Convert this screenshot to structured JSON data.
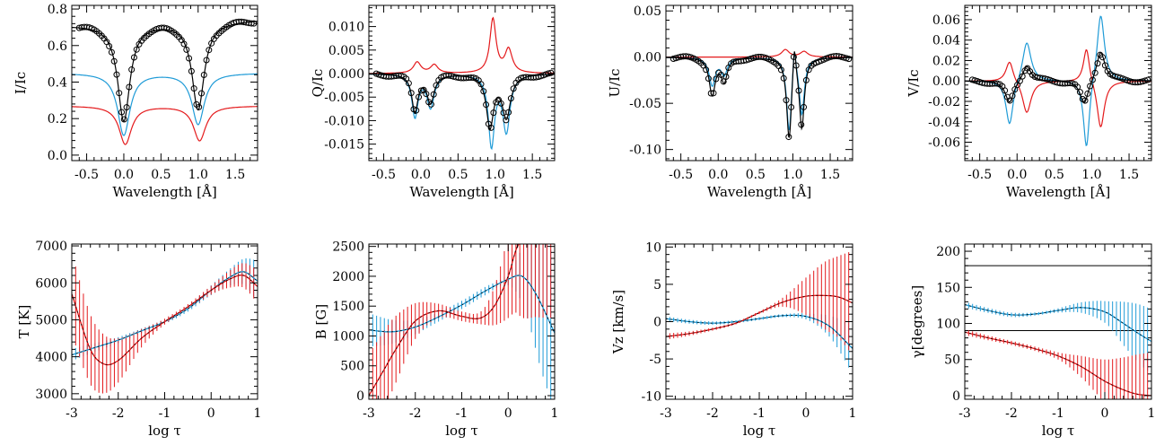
{
  "colors": {
    "black": "#000000",
    "blue": "#1f9bd7",
    "red": "#e41a1c"
  },
  "chart_data": [
    {
      "type": "line",
      "xlabel": "Wavelength [Å]",
      "ylabel": "I/Ic",
      "xlim": [
        -0.7,
        1.8
      ],
      "ylim": [
        -0.03,
        0.82
      ],
      "xticks": [
        -0.5,
        0.0,
        0.5,
        1.0,
        1.5
      ],
      "xticklabels": [
        "-0.5",
        "0.0",
        "0.5",
        "1.0",
        "1.5"
      ],
      "yticks": [
        0.0,
        0.2,
        0.4,
        0.6,
        0.8
      ],
      "yticklabels": [
        "0.0",
        "0.2",
        "0.4",
        "0.6",
        "0.8"
      ],
      "profiles": [
        {
          "color": "black",
          "cont": 0.72,
          "slope": 0.012,
          "lines": [
            [
              0.0,
              -0.53,
              0.1
            ],
            [
              1.0,
              -0.48,
              0.1
            ]
          ]
        },
        {
          "color": "blue",
          "cont": 0.45,
          "lines": [
            [
              0.0,
              -0.34,
              0.1
            ],
            [
              1.0,
              -0.28,
              0.1
            ]
          ]
        },
        {
          "color": "red",
          "cont": 0.27,
          "lines": [
            [
              0.02,
              -0.21,
              0.1
            ],
            [
              1.02,
              -0.19,
              0.1
            ]
          ]
        }
      ],
      "observed": "black"
    },
    {
      "type": "line",
      "xlabel": "Wavelength [Å]",
      "ylabel": "Q/Ic",
      "xlim": [
        -0.7,
        1.8
      ],
      "ylim": [
        -0.0185,
        0.0145
      ],
      "xticks": [
        -0.5,
        0.0,
        0.5,
        1.0,
        1.5
      ],
      "xticklabels": [
        "-0.5",
        "0.0",
        "0.5",
        "1.0",
        "1.5"
      ],
      "yticks": [
        -0.015,
        -0.01,
        -0.005,
        0.0,
        0.005,
        0.01
      ],
      "yticklabels": [
        "-0.015",
        "-0.010",
        "-0.005",
        "0.000",
        "0.005",
        "0.010"
      ],
      "profiles": [
        {
          "color": "black",
          "cont": 0.0,
          "lines": [
            [
              -0.08,
              -0.008,
              0.05
            ],
            [
              0.13,
              -0.006,
              0.06
            ],
            [
              0.93,
              -0.011,
              0.06
            ],
            [
              1.15,
              -0.009,
              0.07
            ]
          ]
        },
        {
          "color": "blue",
          "cont": 0.0,
          "lines": [
            [
              -0.08,
              -0.009,
              0.05
            ],
            [
              0.13,
              -0.007,
              0.06
            ],
            [
              0.95,
              -0.015,
              0.05
            ],
            [
              1.15,
              -0.012,
              0.06
            ]
          ]
        },
        {
          "color": "red",
          "cont": 0.0,
          "lines": [
            [
              -0.05,
              0.0024,
              0.06
            ],
            [
              0.18,
              0.0018,
              0.06
            ],
            [
              0.97,
              0.0115,
              0.05
            ],
            [
              1.18,
              0.005,
              0.06
            ]
          ]
        }
      ],
      "observed": "black"
    },
    {
      "type": "line",
      "xlabel": "Wavelength [Å]",
      "ylabel": "U/Ic",
      "xlim": [
        -0.7,
        1.8
      ],
      "ylim": [
        -0.112,
        0.056
      ],
      "xticks": [
        -0.5,
        0.0,
        0.5,
        1.0,
        1.5
      ],
      "xticklabels": [
        "-0.5",
        "0.0",
        "0.5",
        "1.0",
        "1.5"
      ],
      "yticks": [
        -0.1,
        -0.05,
        0.0,
        0.05
      ],
      "yticklabels": [
        "-0.10",
        "-0.05",
        "0.00",
        "0.05"
      ],
      "profiles": [
        {
          "color": "black",
          "cont": 0.0,
          "lines": [
            [
              -0.08,
              -0.04,
              0.05
            ],
            [
              0.08,
              -0.025,
              0.05
            ],
            [
              0.95,
              -0.088,
              0.04
            ],
            [
              1.02,
              0.038,
              0.025
            ],
            [
              1.12,
              -0.075,
              0.04
            ]
          ]
        },
        {
          "color": "blue",
          "cont": 0.0,
          "lines": [
            [
              -0.08,
              -0.03,
              0.05
            ],
            [
              0.08,
              -0.018,
              0.05
            ],
            [
              0.95,
              -0.08,
              0.04
            ],
            [
              1.02,
              0.033,
              0.025
            ],
            [
              1.12,
              -0.06,
              0.04
            ]
          ]
        },
        {
          "color": "red",
          "cont": 0.0,
          "lines": [
            [
              0.9,
              0.008,
              0.06
            ],
            [
              1.15,
              0.006,
              0.06
            ]
          ]
        }
      ],
      "observed": "black"
    },
    {
      "type": "line",
      "xlabel": "Wavelength [Å]",
      "ylabel": "V/Ic",
      "xlim": [
        -0.7,
        1.8
      ],
      "ylim": [
        -0.078,
        0.074
      ],
      "xticks": [
        -0.5,
        0.0,
        0.5,
        1.0,
        1.5
      ],
      "xticklabels": [
        "-0.5",
        "0.0",
        "0.5",
        "1.0",
        "1.5"
      ],
      "yticks": [
        -0.06,
        -0.04,
        -0.02,
        0.0,
        0.02,
        0.04,
        0.06
      ],
      "yticklabels": [
        "-0.06",
        "-0.04",
        "-0.02",
        "0.00",
        "0.02",
        "0.04",
        "0.06"
      ],
      "profiles": [
        {
          "color": "black",
          "cont": 0.0,
          "lines": [
            [
              -0.1,
              -0.022,
              0.07
            ],
            [
              0.13,
              0.016,
              0.07
            ],
            [
              0.9,
              -0.024,
              0.07
            ],
            [
              1.12,
              0.03,
              0.07
            ]
          ]
        },
        {
          "color": "blue",
          "cont": 0.0,
          "lines": [
            [
              -0.1,
              -0.045,
              0.06
            ],
            [
              0.13,
              0.04,
              0.07
            ],
            [
              0.93,
              -0.07,
              0.05
            ],
            [
              1.12,
              0.068,
              0.06
            ]
          ]
        },
        {
          "color": "red",
          "cont": 0.0,
          "lines": [
            [
              -0.1,
              0.021,
              0.06
            ],
            [
              0.13,
              -0.032,
              0.07
            ],
            [
              0.93,
              0.035,
              0.05
            ],
            [
              1.12,
              -0.047,
              0.06
            ]
          ]
        }
      ],
      "observed": "black"
    },
    {
      "type": "line",
      "xlabel": "log τ",
      "ylabel": "T [K]",
      "xlim": [
        -3,
        1
      ],
      "ylim": [
        2850,
        7050
      ],
      "xticks": [
        -3,
        -2,
        -1,
        0,
        1
      ],
      "xticklabels": [
        "-3",
        "-2",
        "-1",
        "0",
        "1"
      ],
      "yticks": [
        3000,
        4000,
        5000,
        6000,
        7000
      ],
      "yticklabels": [
        "3000",
        "4000",
        "5000",
        "6000",
        "7000"
      ],
      "series": [
        {
          "color": "blue",
          "x": [
            -3,
            -2.5,
            -2,
            -1.5,
            -1,
            -0.5,
            0,
            0.4,
            0.7,
            1
          ],
          "y": [
            4050,
            4250,
            4450,
            4700,
            4950,
            5300,
            5800,
            6150,
            6300,
            6050
          ],
          "err": [
            [
              -3,
              160
            ],
            [
              -2,
              80
            ],
            [
              -1,
              60
            ],
            [
              0,
              130
            ],
            [
              0.6,
              300
            ],
            [
              1,
              550
            ]
          ]
        },
        {
          "color": "red",
          "x": [
            -3,
            -2.6,
            -2.3,
            -2,
            -1.5,
            -1,
            -0.5,
            0,
            0.4,
            0.7,
            1
          ],
          "y": [
            5700,
            4200,
            3800,
            3900,
            4500,
            4950,
            5350,
            5800,
            6100,
            6200,
            5900
          ],
          "err": [
            [
              -3,
              1100
            ],
            [
              -2.5,
              900
            ],
            [
              -2,
              600
            ],
            [
              -1.5,
              250
            ],
            [
              -1,
              80
            ],
            [
              0,
              120
            ],
            [
              0.6,
              300
            ],
            [
              1,
              450
            ]
          ]
        }
      ]
    },
    {
      "type": "line",
      "xlabel": "log τ",
      "ylabel": "B [G]",
      "xlim": [
        -3,
        1
      ],
      "ylim": [
        -60,
        2540
      ],
      "xticks": [
        -3,
        -2,
        -1,
        0,
        1
      ],
      "xticklabels": [
        "-3",
        "-2",
        "-1",
        "0",
        "1"
      ],
      "yticks": [
        0,
        500,
        1000,
        1500,
        2000,
        2500
      ],
      "yticklabels": [
        "0",
        "500",
        "1000",
        "1500",
        "2000",
        "2500"
      ],
      "series": [
        {
          "color": "blue",
          "x": [
            -3,
            -2.5,
            -2,
            -1.5,
            -1,
            -0.5,
            0,
            0.3,
            0.6,
            1
          ],
          "y": [
            1100,
            1070,
            1150,
            1320,
            1520,
            1750,
            1950,
            2000,
            1700,
            1050
          ],
          "err": [
            [
              -3,
              280
            ],
            [
              -2.5,
              200
            ],
            [
              -2,
              120
            ],
            [
              -1.5,
              80
            ],
            [
              -0.5,
              70
            ],
            [
              0,
              100
            ],
            [
              0.4,
              600
            ],
            [
              0.7,
              1100
            ],
            [
              1,
              1300
            ]
          ]
        },
        {
          "color": "red",
          "x": [
            -3,
            -2.7,
            -2.4,
            -2,
            -1.5,
            -1,
            -0.6,
            -0.3,
            0,
            0.2,
            0.5,
            1
          ],
          "y": [
            0,
            400,
            800,
            1250,
            1420,
            1330,
            1300,
            1500,
            2000,
            2500,
            2700,
            2700
          ],
          "err": [
            [
              -3,
              700
            ],
            [
              -2.5,
              600
            ],
            [
              -2,
              300
            ],
            [
              -1.5,
              120
            ],
            [
              -1,
              80
            ],
            [
              -0.5,
              150
            ],
            [
              0,
              700
            ],
            [
              0.3,
              1300
            ],
            [
              0.6,
              1400
            ],
            [
              1,
              1400
            ]
          ]
        }
      ]
    },
    {
      "type": "line",
      "xlabel": "log τ",
      "ylabel": "Vz [km/s]",
      "xlim": [
        -3,
        1
      ],
      "ylim": [
        -10.4,
        10.4
      ],
      "xticks": [
        -3,
        -2,
        -1,
        0,
        1
      ],
      "xticklabels": [
        "-3",
        "-2",
        "-1",
        "0",
        "1"
      ],
      "yticks": [
        -10,
        -5,
        0,
        5,
        10
      ],
      "yticklabels": [
        "-10",
        "-5",
        "0",
        "5",
        "10"
      ],
      "series": [
        {
          "color": "blue",
          "x": [
            -3,
            -2.5,
            -2,
            -1.5,
            -1,
            -0.5,
            0,
            0.5,
            1
          ],
          "y": [
            0.4,
            0.0,
            -0.2,
            0.0,
            0.4,
            0.8,
            0.7,
            -0.6,
            -3.6
          ],
          "err": [
            [
              -3,
              0.3
            ],
            [
              -1,
              0.2
            ],
            [
              0,
              0.4
            ],
            [
              0.5,
              1.4
            ],
            [
              0.8,
              2.5
            ],
            [
              1,
              3.5
            ]
          ]
        },
        {
          "color": "red",
          "x": [
            -3,
            -2.5,
            -2,
            -1.5,
            -1,
            -0.5,
            0,
            0.4,
            0.7,
            1
          ],
          "y": [
            -2.0,
            -1.6,
            -1.0,
            -0.2,
            1.2,
            2.6,
            3.4,
            3.5,
            3.3,
            2.5
          ],
          "err": [
            [
              -3,
              0.4
            ],
            [
              -2,
              0.2
            ],
            [
              -1,
              0.2
            ],
            [
              -0.5,
              0.6
            ],
            [
              0,
              2.5
            ],
            [
              0.4,
              4.5
            ],
            [
              0.7,
              5.5
            ],
            [
              1,
              7
            ]
          ]
        }
      ]
    },
    {
      "type": "line",
      "xlabel": "log τ",
      "ylabel": "γ[degrees]",
      "xlim": [
        -3,
        1
      ],
      "ylim": [
        -5,
        210
      ],
      "xticks": [
        -3,
        -2,
        -1,
        0,
        1
      ],
      "xticklabels": [
        "-3",
        "-2",
        "-1",
        "0",
        "1"
      ],
      "yticks": [
        0,
        50,
        100,
        150,
        200
      ],
      "yticklabels": [
        "0",
        "50",
        "100",
        "150",
        "200"
      ],
      "hlines": [
        180,
        90
      ],
      "series": [
        {
          "color": "blue",
          "x": [
            -3,
            -2.5,
            -2,
            -1.5,
            -1,
            -0.5,
            0,
            0.4,
            0.7,
            1
          ],
          "y": [
            126,
            118,
            112,
            113,
            118,
            122,
            116,
            100,
            87,
            75
          ],
          "err": [
            [
              -3,
              4
            ],
            [
              -2,
              3
            ],
            [
              -1,
              3
            ],
            [
              0,
              15
            ],
            [
              0.4,
              30
            ],
            [
              0.7,
              40
            ],
            [
              1,
              45
            ]
          ]
        },
        {
          "color": "red",
          "x": [
            -3,
            -2.5,
            -2,
            -1.5,
            -1,
            -0.5,
            0,
            0.4,
            0.7,
            1
          ],
          "y": [
            88,
            80,
            73,
            65,
            55,
            40,
            20,
            8,
            2,
            0
          ],
          "err": [
            [
              -3,
              4
            ],
            [
              -2,
              3
            ],
            [
              -1,
              5
            ],
            [
              -0.5,
              15
            ],
            [
              0,
              30
            ],
            [
              0.4,
              45
            ],
            [
              0.7,
              55
            ],
            [
              1,
              60
            ]
          ]
        }
      ]
    }
  ]
}
